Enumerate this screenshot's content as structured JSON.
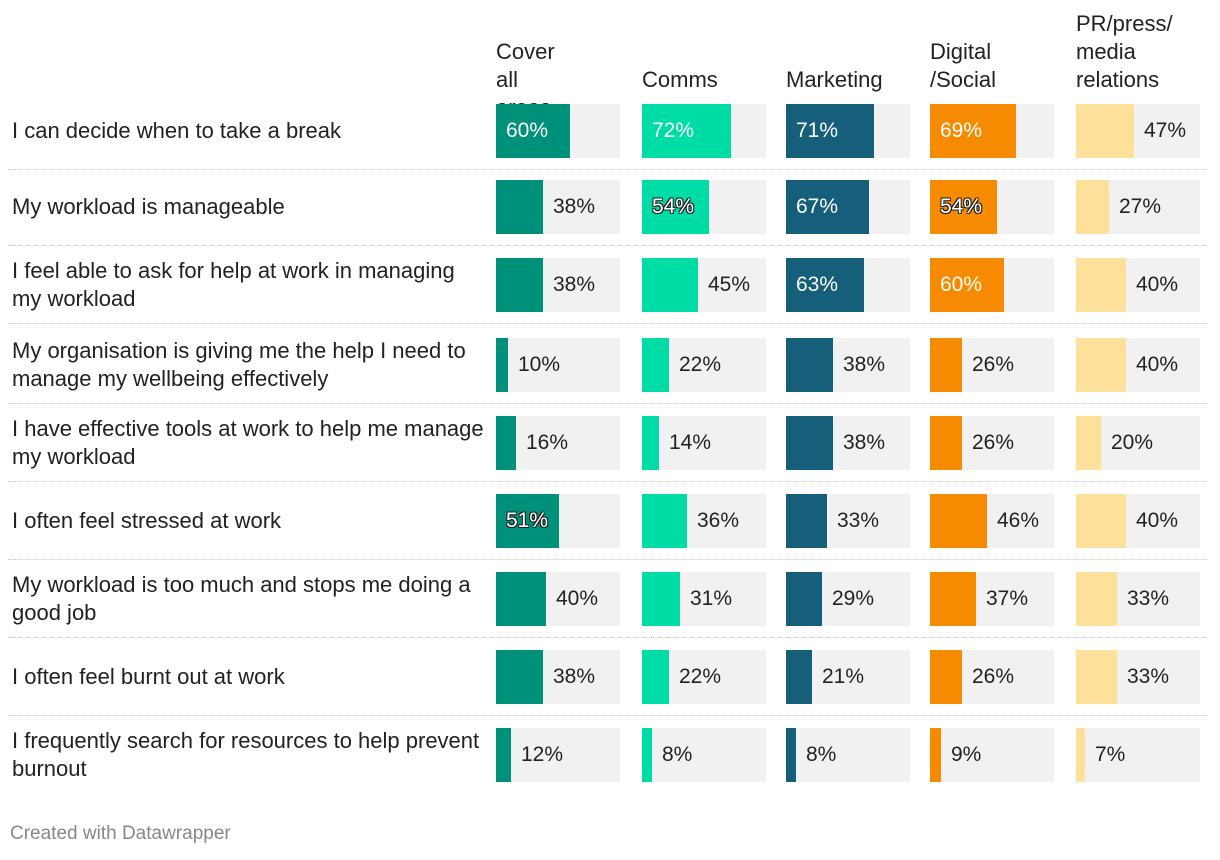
{
  "chart_data": {
    "type": "bar",
    "subtype": "split-bars-table",
    "columns": [
      "Cover all\nareas",
      "Comms",
      "Marketing",
      "Digital\n/Social",
      "PR/press/\nmedia\nrelations"
    ],
    "colors": [
      "#00917a",
      "#00dca6",
      "#155f7a",
      "#f68a00",
      "#fde19b"
    ],
    "track_color": "#f1f1f1",
    "rows": [
      {
        "label": "I can decide when to take a break",
        "values": [
          60,
          72,
          71,
          69,
          47
        ]
      },
      {
        "label": "My workload is manageable",
        "values": [
          38,
          54,
          67,
          54,
          27
        ]
      },
      {
        "label": "I feel able to ask for help at work in managing my workload",
        "values": [
          38,
          45,
          63,
          60,
          40
        ]
      },
      {
        "label": "My organisation is giving me the help I need to manage my wellbeing effectively",
        "values": [
          10,
          22,
          38,
          26,
          40
        ]
      },
      {
        "label": "I have effective tools at work to help me manage my workload",
        "values": [
          16,
          14,
          38,
          26,
          20
        ]
      },
      {
        "label": "I often feel stressed at work",
        "values": [
          51,
          36,
          33,
          46,
          40
        ]
      },
      {
        "label": "My workload is too much and stops me doing a good job",
        "values": [
          40,
          31,
          29,
          37,
          33
        ]
      },
      {
        "label": "I often feel burnt out at work",
        "values": [
          38,
          22,
          21,
          26,
          33
        ]
      },
      {
        "label": "I frequently search for resources to help prevent burnout",
        "values": [
          12,
          8,
          8,
          9,
          7
        ]
      }
    ],
    "value_suffix": "%",
    "xlim": [
      0,
      100
    ]
  },
  "footer": "Created with Datawrapper"
}
